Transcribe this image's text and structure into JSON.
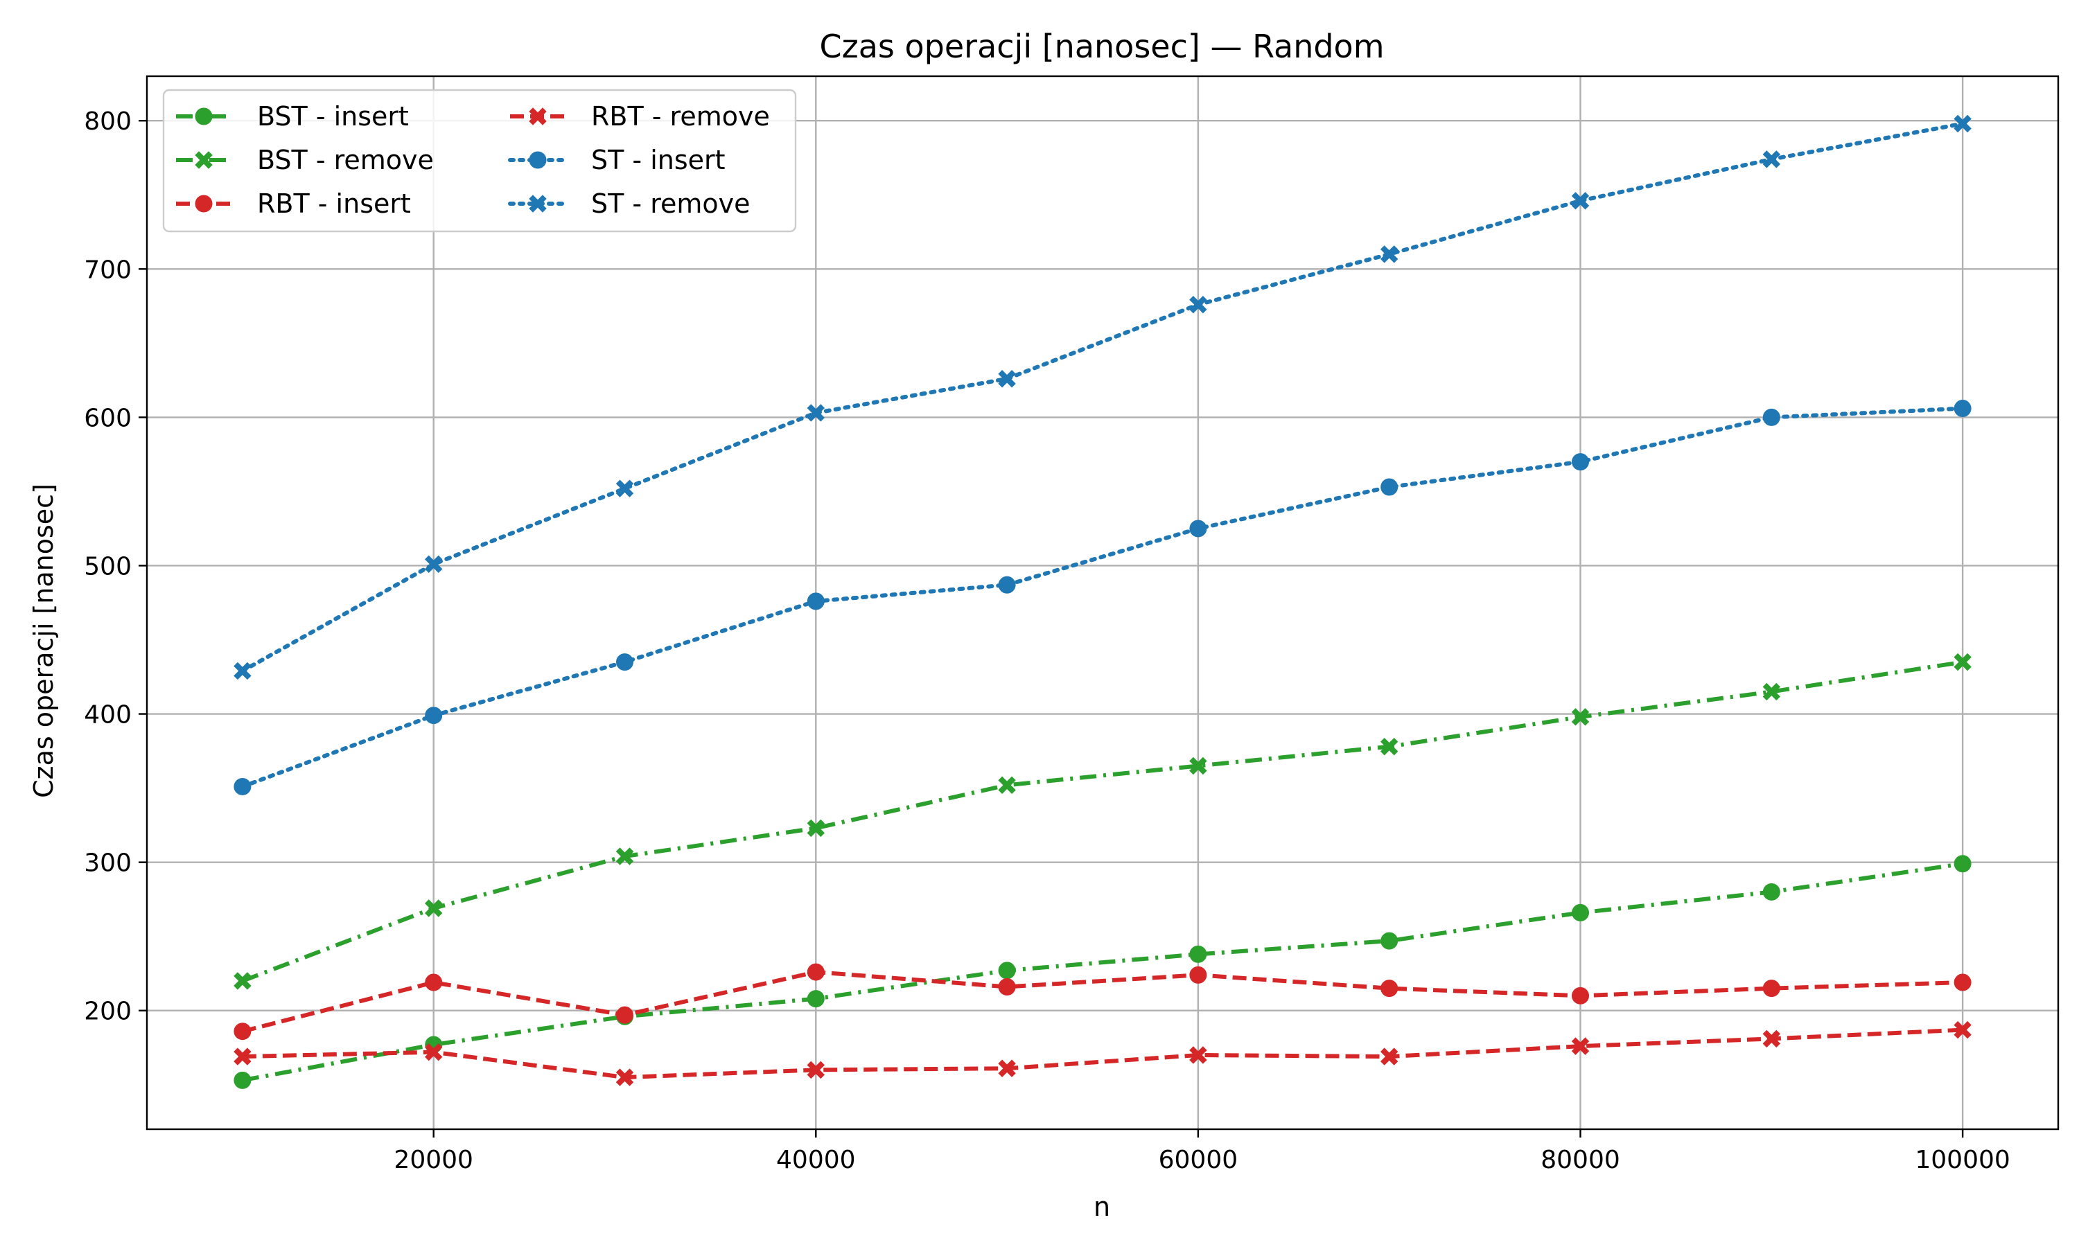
{
  "chart_data": {
    "type": "line",
    "title": "Czas operacji [nanosec] — Random",
    "xlabel": "n",
    "ylabel": "Czas operacji [nanosec]",
    "xlim": [
      5000,
      105000
    ],
    "ylim": [
      120,
      830
    ],
    "xticks": [
      20000,
      40000,
      60000,
      80000,
      100000
    ],
    "yticks": [
      200,
      300,
      400,
      500,
      600,
      700,
      800
    ],
    "grid": true,
    "legend_position": "top-left",
    "x": [
      10000,
      20000,
      30000,
      40000,
      50000,
      60000,
      70000,
      80000,
      90000,
      100000
    ],
    "series": [
      {
        "name": "BST - insert",
        "color": "#2ca02c",
        "linestyle": "dashdot",
        "marker": "circle",
        "values": [
          153,
          177,
          196,
          208,
          227,
          238,
          247,
          266,
          280,
          299
        ]
      },
      {
        "name": "BST - remove",
        "color": "#2ca02c",
        "linestyle": "dashdot",
        "marker": "x",
        "values": [
          220,
          269,
          304,
          323,
          352,
          365,
          378,
          398,
          415,
          435
        ]
      },
      {
        "name": "RBT - insert",
        "color": "#d62728",
        "linestyle": "dashed",
        "marker": "circle",
        "values": [
          186,
          219,
          197,
          226,
          216,
          224,
          215,
          210,
          215,
          219
        ]
      },
      {
        "name": "RBT - remove",
        "color": "#d62728",
        "linestyle": "dashed",
        "marker": "x",
        "values": [
          169,
          172,
          155,
          160,
          161,
          170,
          169,
          176,
          181,
          187
        ]
      },
      {
        "name": "ST - insert",
        "color": "#1f77b4",
        "linestyle": "dotted",
        "marker": "circle",
        "values": [
          351,
          399,
          435,
          476,
          487,
          525,
          553,
          570,
          600,
          606
        ]
      },
      {
        "name": "ST - remove",
        "color": "#1f77b4",
        "linestyle": "dotted",
        "marker": "x",
        "values": [
          429,
          501,
          552,
          603,
          626,
          676,
          710,
          746,
          774,
          798
        ]
      }
    ],
    "legend_order": [
      0,
      1,
      2,
      3,
      4,
      5
    ]
  }
}
